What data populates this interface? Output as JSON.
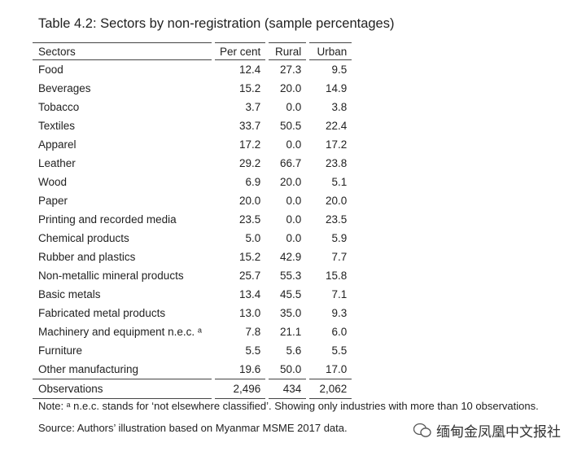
{
  "title": "Table 4.2: Sectors by non-registration (sample percentages)",
  "table": {
    "header": [
      "Sectors",
      "Per cent",
      "Rural",
      "Urban"
    ],
    "rows": [
      [
        "Food",
        "12.4",
        "27.3",
        "9.5"
      ],
      [
        "Beverages",
        "15.2",
        "20.0",
        "14.9"
      ],
      [
        "Tobacco",
        "3.7",
        "0.0",
        "3.8"
      ],
      [
        "Textiles",
        "33.7",
        "50.5",
        "22.4"
      ],
      [
        "Apparel",
        "17.2",
        "0.0",
        "17.2"
      ],
      [
        "Leather",
        "29.2",
        "66.7",
        "23.8"
      ],
      [
        "Wood",
        "6.9",
        "20.0",
        "5.1"
      ],
      [
        "Paper",
        "20.0",
        "0.0",
        "20.0"
      ],
      [
        "Printing and recorded media",
        "23.5",
        "0.0",
        "23.5"
      ],
      [
        "Chemical products",
        "5.0",
        "0.0",
        "5.9"
      ],
      [
        "Rubber and plastics",
        "15.2",
        "42.9",
        "7.7"
      ],
      [
        "Non-metallic mineral products",
        "25.7",
        "55.3",
        "15.8"
      ],
      [
        "Basic metals",
        "13.4",
        "45.5",
        "7.1"
      ],
      [
        "Fabricated metal products",
        "13.0",
        "35.0",
        "9.3"
      ],
      [
        "Machinery and equipment n.e.c. ᵃ",
        "7.8",
        "21.1",
        "6.0"
      ],
      [
        "Furniture",
        "5.5",
        "5.6",
        "5.5"
      ],
      [
        "Other manufacturing",
        "19.6",
        "50.0",
        "17.0"
      ]
    ],
    "footer": [
      "Observations",
      "2,496",
      "434",
      "2,062"
    ]
  },
  "note": "Note: ᵃ n.e.c. stands for ‘not elsewhere classified’. Showing only industries with more than 10 observations.",
  "source": "Source: Authors’ illustration based on Myanmar MSME 2017 data.",
  "watermark": "缅甸金凤凰中文报社"
}
